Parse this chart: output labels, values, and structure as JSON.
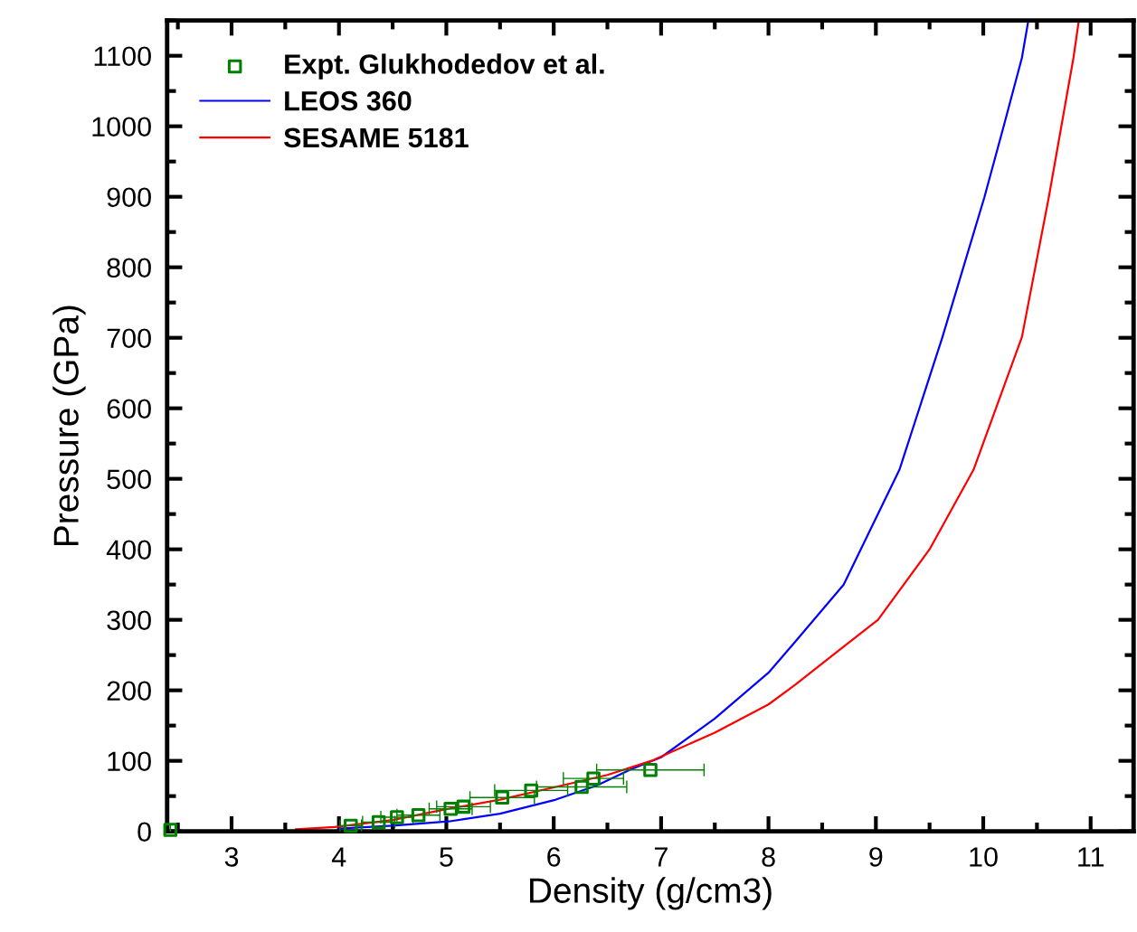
{
  "chart_data": {
    "type": "line",
    "xlabel": "Density (g/cm3)",
    "ylabel": "Pressure (GPa)",
    "xlim": [
      2.4,
      11.4
    ],
    "xticks": [
      3,
      4,
      5,
      6,
      7,
      8,
      9,
      10,
      11
    ],
    "ylim": [
      0,
      1150
    ],
    "yticks": [
      0,
      100,
      200,
      300,
      400,
      500,
      600,
      700,
      800,
      900,
      1000,
      1100
    ],
    "grid": false,
    "legend": "top left",
    "series": [
      {
        "name": "Expt. Glukhodedov et al.",
        "type": "scatter",
        "color": "#008000",
        "marker": "square",
        "x": [
          2.43,
          4.11,
          4.37,
          4.54,
          4.74,
          5.04,
          5.16,
          5.52,
          5.79,
          6.26,
          6.37,
          6.9
        ],
        "values": [
          2,
          8,
          13,
          20,
          23,
          32,
          35,
          48,
          58,
          63,
          75,
          87
        ],
        "xerrors": [
          null,
          0.1,
          0.15,
          0.15,
          0.2,
          0.2,
          0.25,
          0.3,
          0.34,
          0.42,
          0.28,
          0.5
        ]
      },
      {
        "name": "LEOS 360",
        "color": "#0000ff",
        "x": [
          4.0,
          4.5,
          5.02,
          5.5,
          6.02,
          6.4,
          6.72,
          7.0,
          7.5,
          8.0,
          8.25,
          8.7,
          9.22,
          9.62,
          10.01,
          10.19,
          10.36,
          10.42
        ],
        "values": [
          4,
          8,
          14,
          25,
          45,
          65,
          88,
          105,
          160,
          225,
          269,
          350,
          513,
          701,
          899,
          1000,
          1097,
          1150
        ]
      },
      {
        "name": "SESAME 5181",
        "color": "#ff0000",
        "x": [
          3.6,
          3.96,
          4.5,
          5.02,
          5.5,
          6.02,
          6.5,
          6.91,
          7.5,
          8.0,
          8.25,
          8.6,
          9.02,
          9.5,
          9.91,
          10.36,
          10.61,
          10.84,
          10.89
        ],
        "values": [
          3,
          6,
          16,
          32,
          45,
          63,
          80,
          100,
          140,
          180,
          208,
          250,
          300,
          400,
          513,
          701,
          899,
          1097,
          1150
        ]
      }
    ]
  }
}
